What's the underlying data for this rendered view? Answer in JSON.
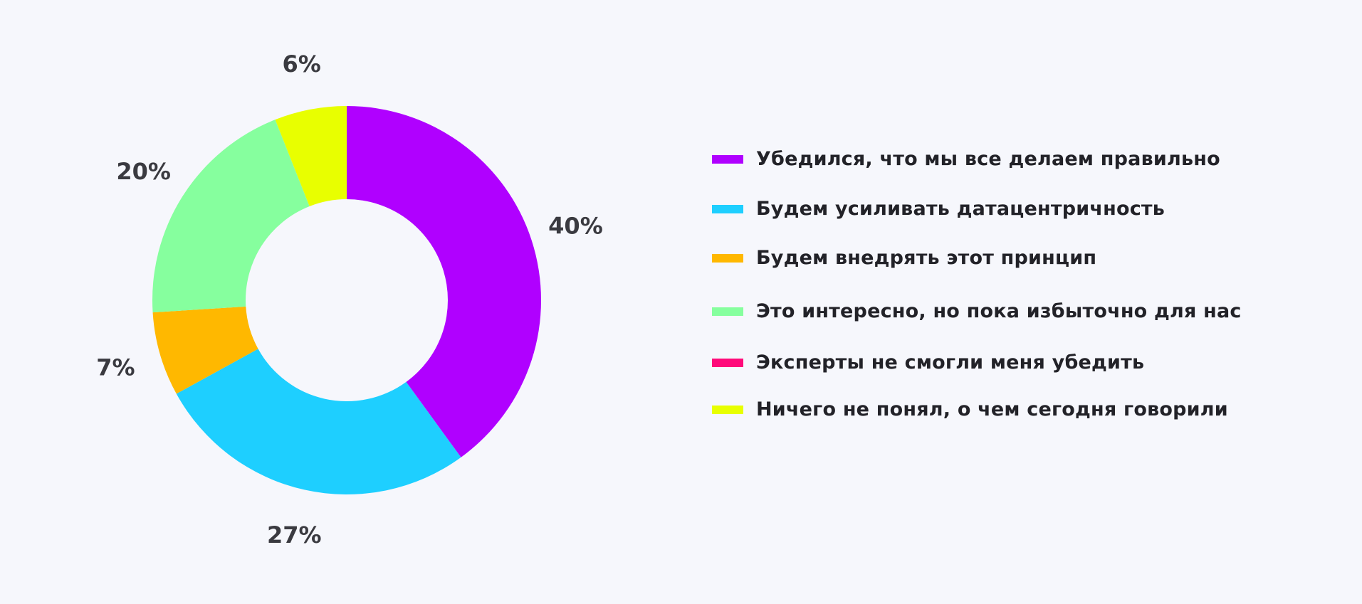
{
  "chart_data": {
    "type": "pie",
    "donut": true,
    "title": "",
    "series": [
      {
        "label": "Убедился, что мы все делаем правильно",
        "value": 40,
        "display": "40%",
        "color": "#b000ff"
      },
      {
        "label": "Будем усиливать датацентричность",
        "value": 27,
        "display": "27%",
        "color": "#1ecfff"
      },
      {
        "label": "Будем внедрять этот принцип",
        "value": 7,
        "display": "7%",
        "color": "#ffb800"
      },
      {
        "label": "Это интересно, но пока избыточно для нас",
        "value": 20,
        "display": "20%",
        "color": "#86ff9e"
      },
      {
        "label": "Эксперты не смогли меня убедить",
        "value": 0,
        "display": "",
        "color": "#ff0a7a"
      },
      {
        "label": "Ничего не понял, о чем сегодня говорили",
        "value": 6,
        "display": "6%",
        "color": "#e8ff00"
      }
    ],
    "legend_position": "right"
  }
}
